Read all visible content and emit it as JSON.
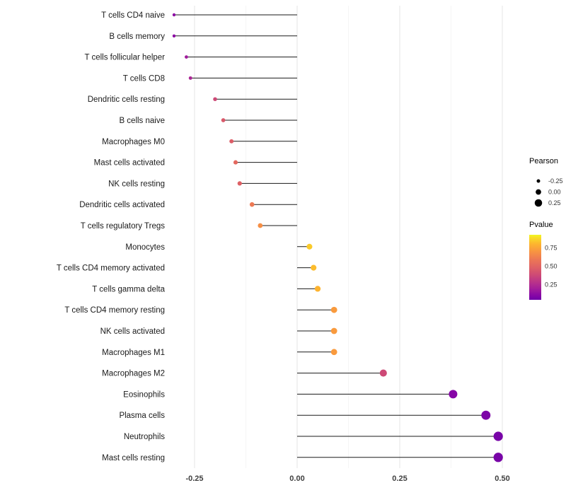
{
  "chart_data": {
    "type": "lollipop",
    "title": "",
    "xlabel": "",
    "ylabel": "",
    "grid": true,
    "xlim": [
      -0.31,
      0.55
    ],
    "x_ticks": [
      -0.25,
      0.0,
      0.25,
      0.5
    ],
    "x_tick_labels": [
      "-0.25",
      "0.00",
      "0.25",
      "0.50"
    ],
    "x_minor_ticks": [
      -0.125,
      0.125,
      0.375
    ],
    "categories": [
      "T cells CD4 naive",
      "B cells memory",
      "T cells follicular helper",
      "T cells CD8",
      "Dendritic cells resting",
      "B cells naive",
      "Macrophages M0",
      "Mast cells activated",
      "NK cells resting",
      "Dendritic cells activated",
      "T cells regulatory  Tregs",
      "Monocytes",
      "T cells CD4 memory activated",
      "T cells gamma delta",
      "T cells CD4 memory resting",
      "NK cells activated",
      "Macrophages M1",
      "Macrophages M2",
      "Eosinophils",
      "Plasma cells",
      "Neutrophils",
      "Mast cells resting"
    ],
    "series": [
      {
        "name": "Pearson",
        "values": [
          -0.3,
          -0.3,
          -0.27,
          -0.26,
          -0.2,
          -0.18,
          -0.16,
          -0.15,
          -0.14,
          -0.11,
          -0.09,
          0.03,
          0.04,
          0.05,
          0.09,
          0.09,
          0.09,
          0.21,
          0.38,
          0.46,
          0.49,
          0.49
        ]
      },
      {
        "name": "Pvalue",
        "values": [
          0.12,
          0.12,
          0.18,
          0.22,
          0.38,
          0.45,
          0.47,
          0.52,
          0.48,
          0.6,
          0.68,
          0.85,
          0.82,
          0.8,
          0.72,
          0.72,
          0.72,
          0.38,
          0.1,
          0.06,
          0.04,
          0.04
        ]
      }
    ],
    "legend": {
      "position": "right",
      "size_title": "Pearson",
      "size_entries": [
        {
          "label": "-0.25",
          "value": -0.25
        },
        {
          "label": "0.00",
          "value": 0.0
        },
        {
          "label": "0.25",
          "value": 0.25
        }
      ],
      "color_title": "Pvalue",
      "color_ticks": [
        {
          "label": "0.75",
          "p": 0.75
        },
        {
          "label": "0.50",
          "p": 0.5
        },
        {
          "label": "0.25",
          "p": 0.25
        }
      ],
      "colormap": [
        {
          "p": 0.0,
          "color": "#6f02a8"
        },
        {
          "p": 0.1,
          "color": "#8606a6"
        },
        {
          "p": 0.2,
          "color": "#a62098"
        },
        {
          "p": 0.3,
          "color": "#bd3786"
        },
        {
          "p": 0.4,
          "color": "#d14e72"
        },
        {
          "p": 0.5,
          "color": "#e16462"
        },
        {
          "p": 0.6,
          "color": "#ed7953"
        },
        {
          "p": 0.7,
          "color": "#f89441"
        },
        {
          "p": 0.8,
          "color": "#fdb32f"
        },
        {
          "p": 0.9,
          "color": "#f7e225"
        },
        {
          "p": 0.97,
          "color": "#f0f921"
        }
      ]
    },
    "colors": {
      "stem": "#1a1a1a",
      "grid_major": "#e4e4e4",
      "grid_minor": "#f4f4f4",
      "axis_text": "#404040",
      "category_text": "#1a1a1a",
      "legend_text": "#333333",
      "legend_dot": "#000000",
      "background": "#ffffff"
    }
  }
}
